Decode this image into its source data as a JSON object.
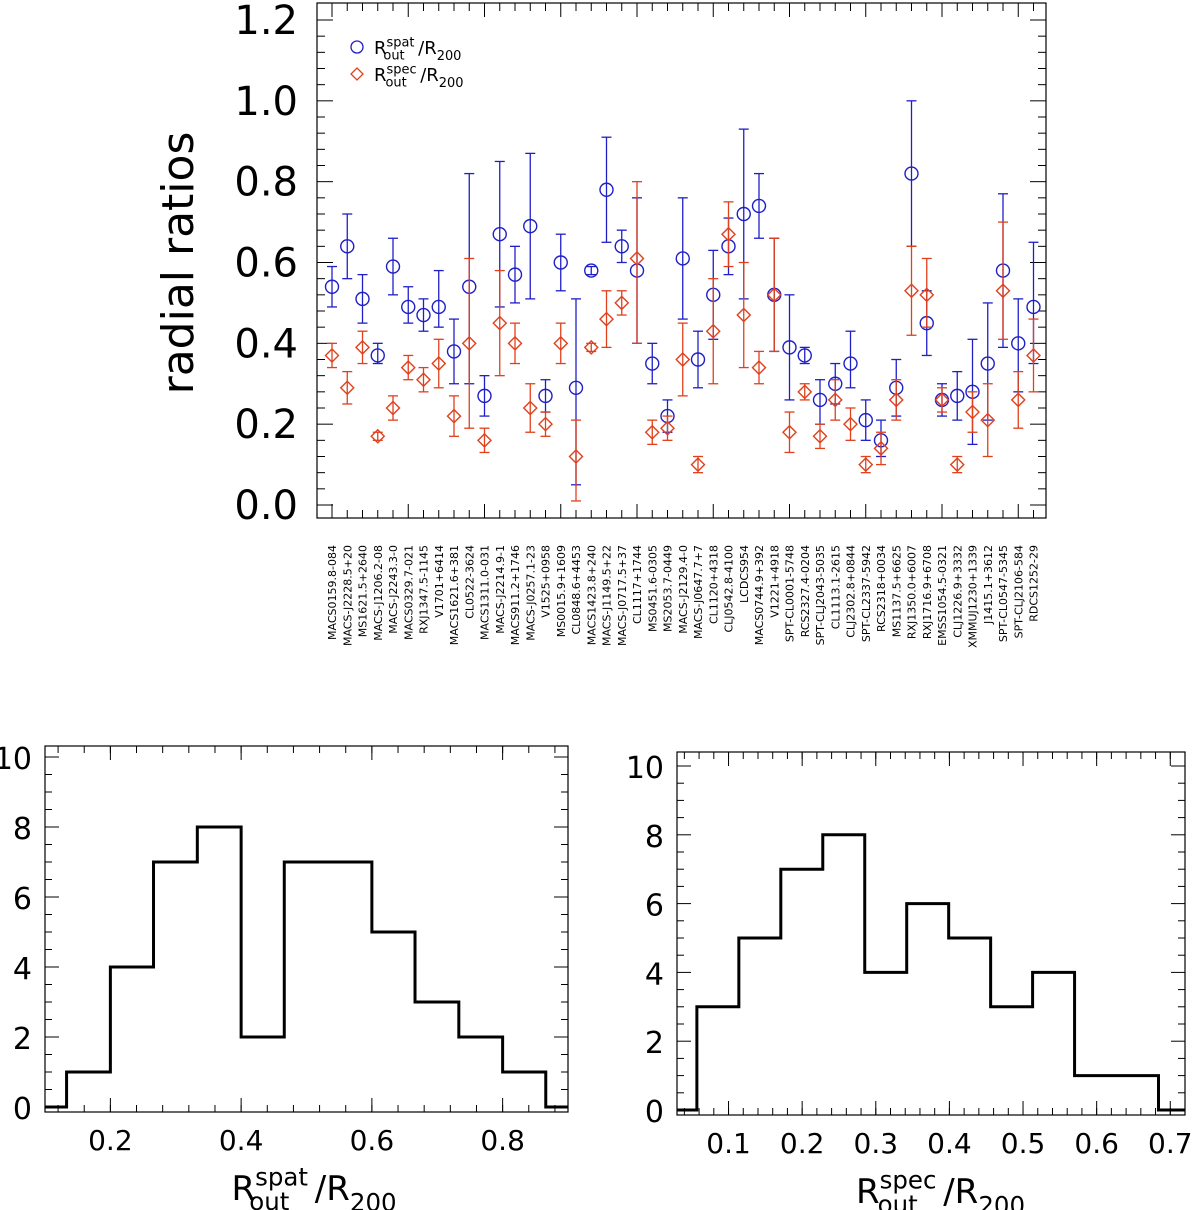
{
  "chart_data": [
    {
      "type": "scatter",
      "ylabel": "radial ratios",
      "xlabel": "",
      "ylim": [
        0.0,
        1.2
      ],
      "yticks": [
        "0.0",
        "0.2",
        "0.4",
        "0.6",
        "0.8",
        "1.0",
        "1.2"
      ],
      "legend": [
        {
          "symbol": "circle",
          "color": "#1f1fc8",
          "text": "R",
          "sup": "spat",
          "sub": "out",
          "text2": " /R",
          "sub2": "200"
        },
        {
          "symbol": "diamond",
          "color": "#e0401c",
          "text": "R",
          "sup": "spec",
          "sub": "out",
          "text2": " /R",
          "sub2": "200"
        }
      ],
      "categories": [
        "MACS0159.8-084",
        "MACS-J2228.5+20",
        "MS1621.5+2640",
        "MACS-J1206.2-08",
        "MACS-J2243.3-0",
        "MACS0329.7-021",
        "RXJ1347.5-1145",
        "V1701+6414",
        "MACS1621.6+381",
        "CL0522-3624",
        "MACS1311.0-031",
        "MACS-J2214.9-1",
        "MACS911.2+1746",
        "MACS-J0257.1-23",
        "V1525+0958",
        "MS0015.9+1609",
        "CL0848.6+4453",
        "MACS1423.8+240",
        "MACS-J1149.5+22",
        "MACS-J0717.5+37",
        "CL1117+1744",
        "MS0451.6-0305",
        "MS2053.7-0449",
        "MACS-J2129.4-0",
        "MACS-J0647.7+7",
        "CL1120+4318",
        "CLJ0542.8-4100",
        "LCDCS954",
        "MACS0744.9+392",
        "V1221+4918",
        "SPT-CL0001-5748",
        "RCS2327.4-0204",
        "SPT-CLJ2043-5035",
        "CL1113.1-2615",
        "CLJ2302.8+0844",
        "SPT-CL2337-5942",
        "RCS2318+0034",
        "MS1137.5+6625",
        "RXJ1350.0+6007",
        "RXJ1716.9+6708",
        "EMSS1054.5-0321",
        "CLJ1226.9+3332",
        "XMMUJ1230+1339",
        "J1415.1+3612",
        "SPT-CL0547-5345",
        "SPT-CLJ2106-584",
        "RDCS1252-29"
      ],
      "series": [
        {
          "name": "R_out^spat/R_200",
          "marker": "circle",
          "color": "#1f1fc8",
          "values": [
            0.54,
            0.64,
            0.51,
            0.37,
            0.59,
            0.49,
            0.47,
            0.49,
            0.38,
            0.54,
            0.27,
            0.67,
            0.57,
            0.69,
            0.27,
            0.6,
            0.29,
            0.58,
            0.78,
            0.64,
            0.58,
            0.35,
            0.22,
            0.61,
            0.36,
            0.52,
            0.64,
            0.72,
            0.74,
            0.52,
            0.39,
            0.37,
            0.26,
            0.3,
            0.35,
            0.21,
            0.16,
            0.29,
            0.82,
            0.45,
            0.26,
            0.27,
            0.28,
            0.35,
            0.58,
            0.4,
            0.49
          ],
          "err_low": [
            0.05,
            0.08,
            0.06,
            0.02,
            0.07,
            0.04,
            0.04,
            0.05,
            0.08,
            0.24,
            0.05,
            0.18,
            0.07,
            0.18,
            0.04,
            0.07,
            0.24,
            0.01,
            0.13,
            0.04,
            0.18,
            0.05,
            0.04,
            0.15,
            0.07,
            0.11,
            0.07,
            0.21,
            0.08,
            0.14,
            0.13,
            0.02,
            0.06,
            0.05,
            0.06,
            0.05,
            0.04,
            0.07,
            0.18,
            0.08,
            0.04,
            0.06,
            0.13,
            0.14,
            0.19,
            0.12,
            0.14
          ],
          "err_high": [
            0.05,
            0.08,
            0.06,
            0.03,
            0.07,
            0.05,
            0.04,
            0.09,
            0.08,
            0.28,
            0.05,
            0.18,
            0.07,
            0.18,
            0.04,
            0.07,
            0.22,
            0.01,
            0.13,
            0.04,
            0.18,
            0.05,
            0.04,
            0.15,
            0.07,
            0.11,
            0.07,
            0.21,
            0.08,
            0.14,
            0.13,
            0.02,
            0.05,
            0.05,
            0.08,
            0.05,
            0.05,
            0.07,
            0.18,
            0.08,
            0.04,
            0.06,
            0.13,
            0.15,
            0.19,
            0.11,
            0.16
          ]
        },
        {
          "name": "R_out^spec/R_200",
          "marker": "diamond",
          "color": "#e0401c",
          "values": [
            0.37,
            0.29,
            0.39,
            0.17,
            0.24,
            0.34,
            0.31,
            0.35,
            0.22,
            0.4,
            0.16,
            0.45,
            0.4,
            0.24,
            0.2,
            0.4,
            0.12,
            0.39,
            0.46,
            0.5,
            0.61,
            0.18,
            0.19,
            0.36,
            0.1,
            0.43,
            0.67,
            0.47,
            0.34,
            0.52,
            0.18,
            0.28,
            0.17,
            0.26,
            0.2,
            0.1,
            0.14,
            0.26,
            0.53,
            0.52,
            0.26,
            0.1,
            0.23,
            0.21,
            0.53,
            0.26,
            0.37
          ],
          "err_low": [
            0.03,
            0.04,
            0.04,
            0.01,
            0.03,
            0.03,
            0.03,
            0.06,
            0.05,
            0.21,
            0.03,
            0.13,
            0.05,
            0.06,
            0.03,
            0.05,
            0.11,
            0.01,
            0.07,
            0.03,
            0.21,
            0.03,
            0.03,
            0.09,
            0.02,
            0.13,
            0.08,
            0.13,
            0.04,
            0.14,
            0.05,
            0.02,
            0.03,
            0.05,
            0.04,
            0.02,
            0.04,
            0.05,
            0.11,
            0.08,
            0.03,
            0.02,
            0.05,
            0.09,
            0.12,
            0.07,
            0.09
          ],
          "err_high": [
            0.03,
            0.04,
            0.04,
            0.01,
            0.03,
            0.03,
            0.03,
            0.06,
            0.05,
            0.21,
            0.03,
            0.13,
            0.05,
            0.06,
            0.03,
            0.05,
            0.09,
            0.01,
            0.07,
            0.03,
            0.19,
            0.03,
            0.03,
            0.09,
            0.02,
            0.13,
            0.08,
            0.13,
            0.04,
            0.14,
            0.05,
            0.02,
            0.03,
            0.05,
            0.04,
            0.02,
            0.04,
            0.05,
            0.11,
            0.09,
            0.03,
            0.02,
            0.05,
            0.09,
            0.17,
            0.07,
            0.09
          ]
        }
      ]
    },
    {
      "type": "histogram",
      "xlabel": {
        "text": "R",
        "sup": "spat",
        "sub": "out",
        "text2": " /R",
        "sub2": "200"
      },
      "ylabel": "",
      "xlim": [
        0.1,
        0.9
      ],
      "ylim": [
        0,
        10
      ],
      "xticks": [
        "0.2",
        "0.4",
        "0.6",
        "0.8"
      ],
      "yticks": [
        "0",
        "2",
        "4",
        "6",
        "8",
        "10"
      ],
      "bin_edges": [
        0.066,
        0.133,
        0.2,
        0.266,
        0.333,
        0.4,
        0.466,
        0.533,
        0.6,
        0.666,
        0.733,
        0.8,
        0.866,
        0.933
      ],
      "counts": [
        0,
        1,
        4,
        7,
        8,
        2,
        7,
        7,
        5,
        3,
        2,
        1,
        0
      ]
    },
    {
      "type": "histogram",
      "xlabel": {
        "text": "R",
        "sup": "spec",
        "sub": "out",
        "text2": " /R",
        "sub2": "200"
      },
      "ylabel": "",
      "xlim": [
        0.03,
        0.72
      ],
      "ylim": [
        0,
        10
      ],
      "xticks": [
        "0.1",
        "0.2",
        "0.3",
        "0.4",
        "0.5",
        "0.6",
        "0.7"
      ],
      "yticks": [
        "0",
        "2",
        "4",
        "6",
        "8",
        "10"
      ],
      "bin_edges": [
        0.0,
        0.057,
        0.114,
        0.171,
        0.228,
        0.285,
        0.342,
        0.399,
        0.456,
        0.513,
        0.57,
        0.627,
        0.684,
        0.741
      ],
      "counts": [
        0,
        3,
        5,
        7,
        8,
        4,
        6,
        5,
        3,
        4,
        1,
        1,
        0
      ]
    }
  ]
}
